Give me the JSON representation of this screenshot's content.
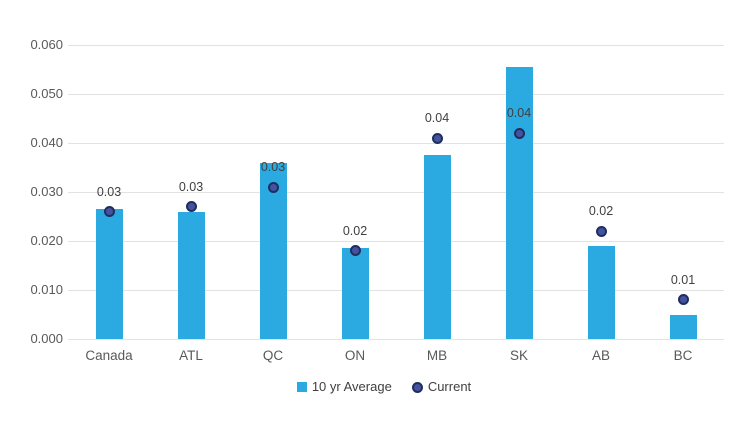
{
  "chart_data": {
    "type": "bar",
    "title": "",
    "xlabel": "",
    "ylabel": "",
    "categories": [
      "Canada",
      "ATL",
      "QC",
      "ON",
      "MB",
      "SK",
      "AB",
      "BC"
    ],
    "series": [
      {
        "name": "10 yr Average",
        "style": "bar",
        "color": "#2BA9E1",
        "values": [
          0.0265,
          0.026,
          0.036,
          0.0185,
          0.0375,
          0.0555,
          0.019,
          0.005
        ]
      },
      {
        "name": "Current",
        "style": "circle-marker",
        "fill": "#4552A0",
        "border": "#1E2F5D",
        "values": [
          0.026,
          0.027,
          0.031,
          0.018,
          0.041,
          0.042,
          0.022,
          0.008
        ]
      }
    ],
    "data_labels": {
      "for_series": "Current",
      "values": [
        "0.03",
        "0.03",
        "0.03",
        "0.02",
        "0.04",
        "0.04",
        "0.02",
        "0.01"
      ]
    },
    "y_ticks": [
      "0.000",
      "0.010",
      "0.020",
      "0.030",
      "0.040",
      "0.050",
      "0.060"
    ],
    "ylim": [
      0,
      0.06
    ],
    "grid": true,
    "legend_position": "bottom"
  },
  "legend": {
    "items": [
      {
        "label": "10 yr Average",
        "marker": "square-icon"
      },
      {
        "label": "Current",
        "marker": "circle-icon"
      }
    ]
  },
  "colors": {
    "background": "#FFFFFF",
    "bar": "#2BA9E1",
    "marker_fill": "#4552A0",
    "marker_border": "#1E2F5D",
    "gridline": "#E2E2E2",
    "tick_label": "#595959",
    "category_label": "#595959",
    "data_label": "#404040",
    "legend_text": "#404040"
  }
}
